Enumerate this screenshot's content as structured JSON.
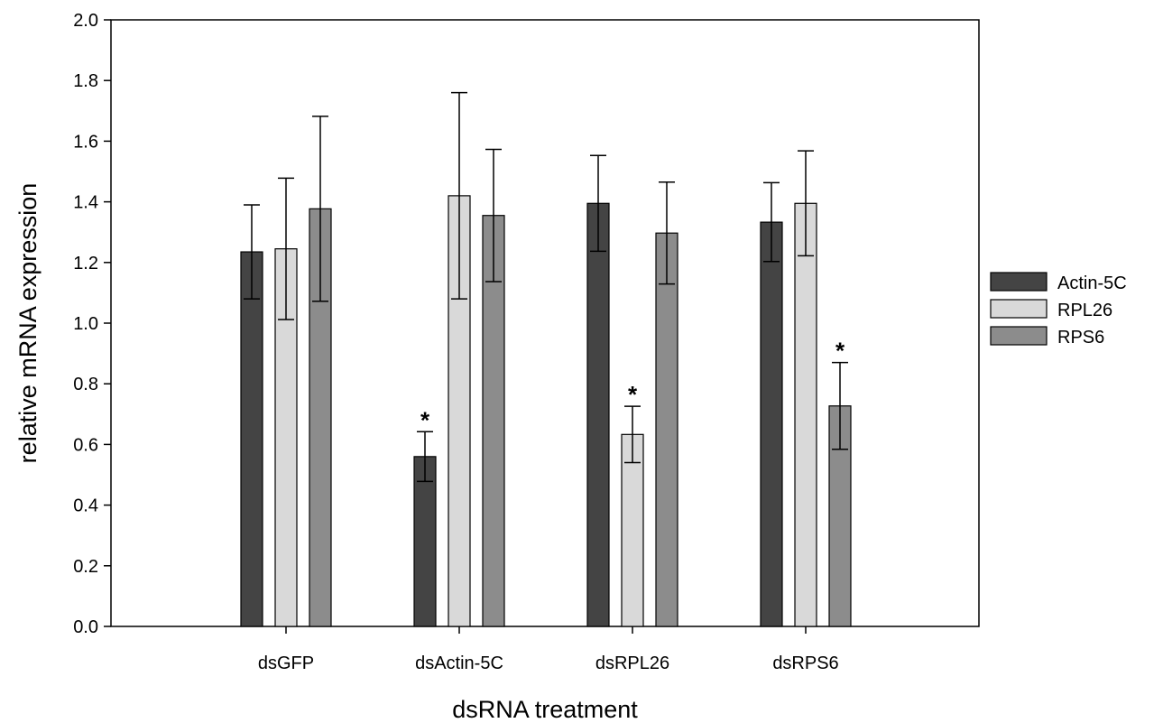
{
  "chart_data": {
    "type": "bar",
    "title": "",
    "xlabel": "dsRNA treatment",
    "ylabel": "relative mRNA expression",
    "ylim": [
      0,
      2.0
    ],
    "yticks": [
      "0.0",
      "0.2",
      "0.4",
      "0.6",
      "0.8",
      "1.0",
      "1.2",
      "1.4",
      "1.6",
      "1.8",
      "2.0"
    ],
    "categories": [
      "dsGFP",
      "dsActin-5C",
      "dsRPL26",
      "dsRPS6"
    ],
    "series": [
      {
        "name": "Actin-5C",
        "color": "#444444",
        "values": [
          1.235,
          0.56,
          1.395,
          1.333
        ],
        "error": [
          0.155,
          0.082,
          0.158,
          0.13
        ],
        "significant": [
          false,
          true,
          false,
          false
        ]
      },
      {
        "name": "RPL26",
        "color": "#d9d9d9",
        "values": [
          1.245,
          1.42,
          0.633,
          1.395
        ],
        "error": [
          0.233,
          0.34,
          0.093,
          0.173
        ],
        "significant": [
          false,
          false,
          true,
          false
        ]
      },
      {
        "name": "RPS6",
        "color": "#8c8c8c",
        "values": [
          1.377,
          1.355,
          1.297,
          0.727
        ],
        "error": [
          0.305,
          0.218,
          0.168,
          0.143
        ],
        "significant": [
          false,
          false,
          false,
          true
        ]
      }
    ],
    "significance_marker": "*",
    "legend_position": "right",
    "grid": false
  }
}
